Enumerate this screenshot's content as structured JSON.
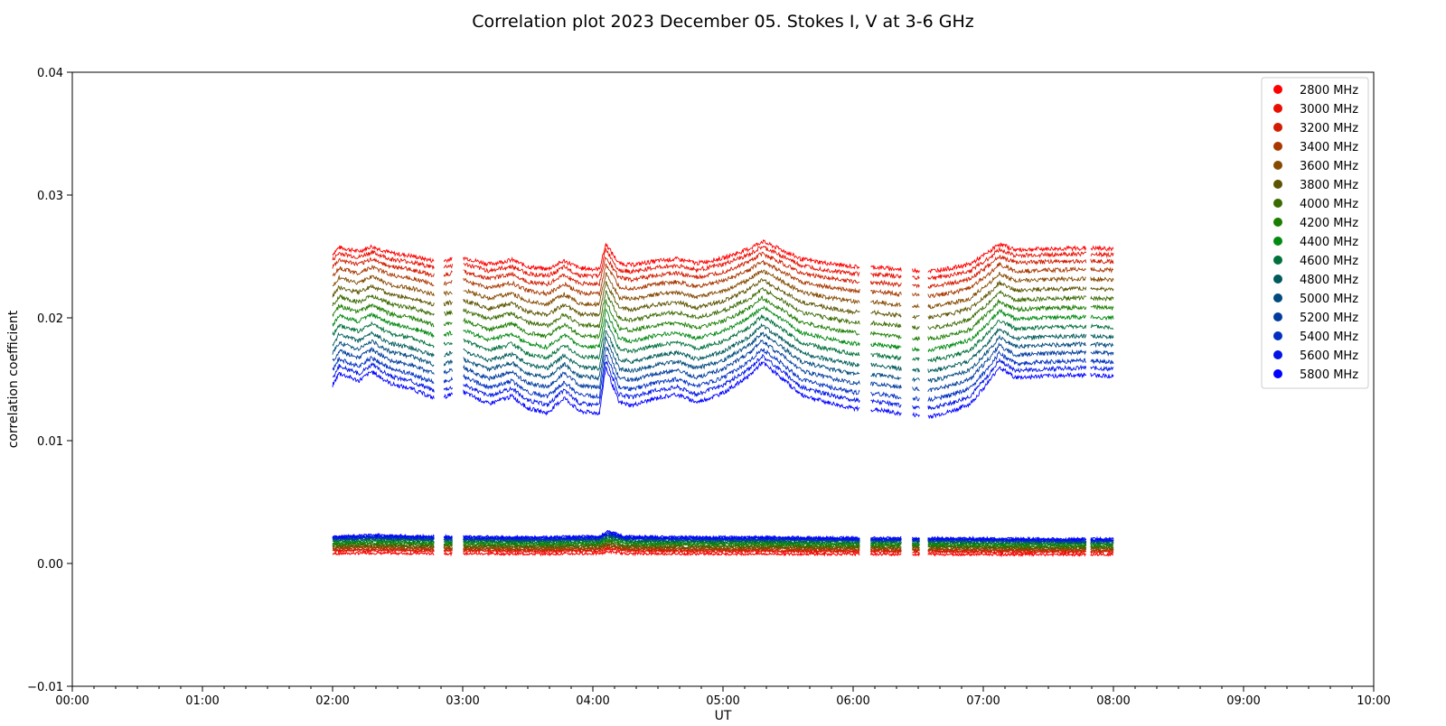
{
  "chart_data": {
    "type": "scatter",
    "title": "Correlation plot 2023 December 05. Stokes I, V at 3-6 GHz",
    "xlabel": "UT",
    "ylabel": "correlation coefficient",
    "xlim": [
      "00:00",
      "10:00"
    ],
    "ylim": [
      -0.01,
      0.04
    ],
    "x_ticks": [
      "00:00",
      "01:00",
      "02:00",
      "03:00",
      "04:00",
      "05:00",
      "06:00",
      "07:00",
      "08:00",
      "09:00",
      "10:00"
    ],
    "y_ticks": [
      "−0.01",
      "0.00",
      "0.01",
      "0.02",
      "0.03",
      "0.04"
    ],
    "grid": false,
    "legend_position": "top-right",
    "x_unit": "hours UT",
    "observation_span": {
      "start": 2.0,
      "end": 8.0
    },
    "data_gaps": [
      [
        2.78,
        2.85
      ],
      [
        2.92,
        3.0
      ],
      [
        6.05,
        6.13
      ],
      [
        6.37,
        6.45
      ],
      [
        6.51,
        6.57
      ],
      [
        7.79,
        7.82
      ]
    ],
    "stokes_i_profile": [
      [
        2.0,
        0.0
      ],
      [
        2.05,
        0.4
      ],
      [
        2.2,
        0.15
      ],
      [
        2.3,
        0.45
      ],
      [
        2.45,
        0.05
      ],
      [
        2.6,
        -0.1
      ],
      [
        2.8,
        -0.45
      ],
      [
        3.0,
        -0.2
      ],
      [
        3.2,
        -0.6
      ],
      [
        3.38,
        -0.35
      ],
      [
        3.5,
        -0.75
      ],
      [
        3.65,
        -0.9
      ],
      [
        3.78,
        -0.4
      ],
      [
        3.9,
        -0.85
      ],
      [
        4.05,
        -0.9
      ],
      [
        4.1,
        0.6
      ],
      [
        4.2,
        -0.55
      ],
      [
        4.3,
        -0.65
      ],
      [
        4.5,
        -0.4
      ],
      [
        4.65,
        -0.3
      ],
      [
        4.8,
        -0.55
      ],
      [
        5.0,
        -0.25
      ],
      [
        5.2,
        0.3
      ],
      [
        5.3,
        0.75
      ],
      [
        5.45,
        0.25
      ],
      [
        5.6,
        -0.3
      ],
      [
        5.8,
        -0.55
      ],
      [
        6.0,
        -0.75
      ],
      [
        6.2,
        -0.8
      ],
      [
        6.4,
        -0.95
      ],
      [
        6.6,
        -1.0
      ],
      [
        6.75,
        -0.85
      ],
      [
        6.9,
        -0.6
      ],
      [
        7.05,
        0.15
      ],
      [
        7.12,
        0.6
      ],
      [
        7.25,
        0.25
      ],
      [
        7.45,
        0.3
      ],
      [
        7.8,
        0.35
      ],
      [
        8.0,
        0.3
      ]
    ],
    "stokes_v_profile": [
      [
        2.0,
        0.0
      ],
      [
        2.3,
        0.25
      ],
      [
        2.6,
        0.1
      ],
      [
        2.8,
        0.0
      ],
      [
        3.0,
        0.0
      ],
      [
        3.6,
        -0.15
      ],
      [
        4.05,
        0.05
      ],
      [
        4.12,
        0.9
      ],
      [
        4.25,
        0.0
      ],
      [
        4.7,
        -0.1
      ],
      [
        5.0,
        -0.15
      ],
      [
        5.3,
        -0.1
      ],
      [
        5.7,
        -0.2
      ],
      [
        6.0,
        -0.25
      ],
      [
        6.5,
        -0.3
      ],
      [
        7.0,
        -0.35
      ],
      [
        7.5,
        -0.45
      ],
      [
        8.0,
        -0.45
      ]
    ],
    "series": [
      {
        "name": "2800 MHz",
        "color": "#ff0000",
        "stokes_i_base": 0.0252,
        "stokes_v_base": 0.0008
      },
      {
        "name": "3000 MHz",
        "color": "#e80e00",
        "stokes_i_base": 0.0247,
        "stokes_v_base": 0.001
      },
      {
        "name": "3200 MHz",
        "color": "#d11c00",
        "stokes_i_base": 0.0241,
        "stokes_v_base": 0.0011
      },
      {
        "name": "3400 MHz",
        "color": "#a83800",
        "stokes_i_base": 0.0234,
        "stokes_v_base": 0.0012
      },
      {
        "name": "3600 MHz",
        "color": "#854a00",
        "stokes_i_base": 0.0226,
        "stokes_v_base": 0.0013
      },
      {
        "name": "3800 MHz",
        "color": "#5c5400",
        "stokes_i_base": 0.0218,
        "stokes_v_base": 0.0014
      },
      {
        "name": "4000 MHz",
        "color": "#3a6a00",
        "stokes_i_base": 0.021,
        "stokes_v_base": 0.0015
      },
      {
        "name": "4200 MHz",
        "color": "#1a7d00",
        "stokes_i_base": 0.0202,
        "stokes_v_base": 0.0016
      },
      {
        "name": "4400 MHz",
        "color": "#008a10",
        "stokes_i_base": 0.0194,
        "stokes_v_base": 0.0017
      },
      {
        "name": "4600 MHz",
        "color": "#00703c",
        "stokes_i_base": 0.0186,
        "stokes_v_base": 0.0018
      },
      {
        "name": "4800 MHz",
        "color": "#005a5a",
        "stokes_i_base": 0.0178,
        "stokes_v_base": 0.0019
      },
      {
        "name": "5000 MHz",
        "color": "#004a7e",
        "stokes_i_base": 0.0171,
        "stokes_v_base": 0.002
      },
      {
        "name": "5200 MHz",
        "color": "#003c9e",
        "stokes_i_base": 0.0164,
        "stokes_v_base": 0.002
      },
      {
        "name": "5400 MHz",
        "color": "#0030c0",
        "stokes_i_base": 0.0157,
        "stokes_v_base": 0.0021
      },
      {
        "name": "5600 MHz",
        "color": "#0014e6",
        "stokes_i_base": 0.0151,
        "stokes_v_base": 0.0021
      },
      {
        "name": "5800 MHz",
        "color": "#0000ff",
        "stokes_i_base": 0.0145,
        "stokes_v_base": 0.0022
      }
    ]
  }
}
